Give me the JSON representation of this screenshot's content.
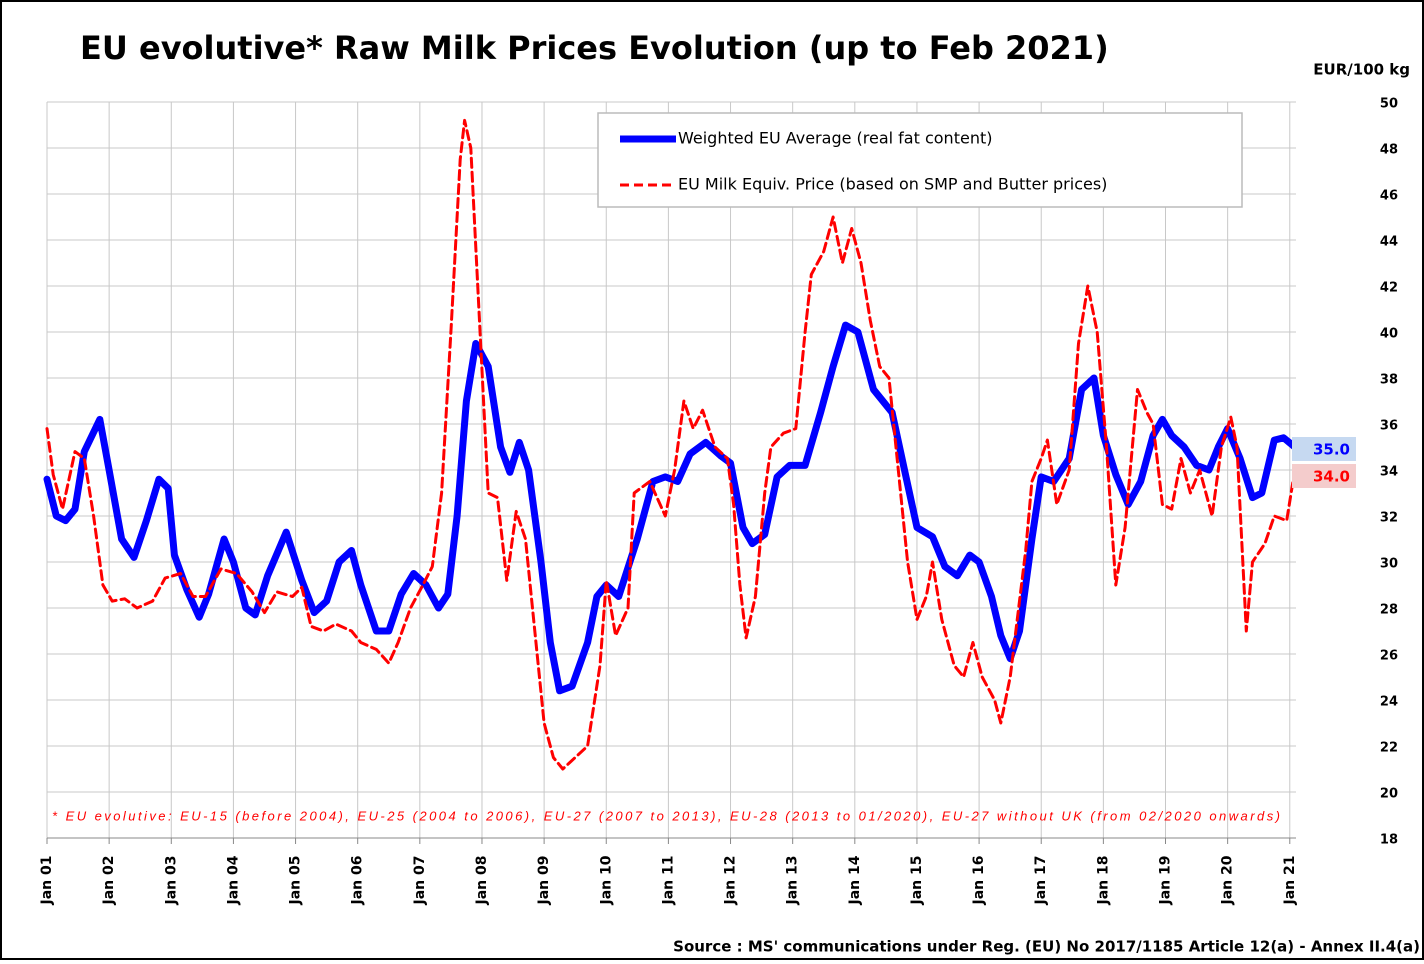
{
  "chart_data": {
    "type": "line",
    "title": "EU evolutive* Raw Milk Prices Evolution (up to Feb 2021)",
    "y_axis_label": "EUR/100 kg",
    "annotation": "* EU evolutive: EU-15 (before 2004), EU-25 (2004 to 2006), EU-27 (2007 to 2013), EU-28 (2013 to 01/2020), EU-27 without UK (from 02/2020 onwards)",
    "source": "Source : MS' communications under Reg. (EU) No 2017/1185 Article 12(a) - Annex II.4(a)",
    "xlim": [
      2001,
      2021.1
    ],
    "xticks": [
      {
        "value": 2001,
        "label": "Jan 01"
      },
      {
        "value": 2002,
        "label": "Jan 02"
      },
      {
        "value": 2003,
        "label": "Jan 03"
      },
      {
        "value": 2004,
        "label": "Jan 04"
      },
      {
        "value": 2005,
        "label": "Jan 05"
      },
      {
        "value": 2006,
        "label": "Jan 06"
      },
      {
        "value": 2007,
        "label": "Jan 07"
      },
      {
        "value": 2008,
        "label": "Jan 08"
      },
      {
        "value": 2009,
        "label": "Jan 09"
      },
      {
        "value": 2010,
        "label": "Jan 10"
      },
      {
        "value": 2011,
        "label": "Jan 11"
      },
      {
        "value": 2012,
        "label": "Jan 12"
      },
      {
        "value": 2013,
        "label": "Jan 13"
      },
      {
        "value": 2014,
        "label": "Jan 14"
      },
      {
        "value": 2015,
        "label": "Jan 15"
      },
      {
        "value": 2016,
        "label": "Jan 16"
      },
      {
        "value": 2017,
        "label": "Jan 17"
      },
      {
        "value": 2018,
        "label": "Jan 18"
      },
      {
        "value": 2019,
        "label": "Jan 19"
      },
      {
        "value": 2020,
        "label": "Jan 20"
      },
      {
        "value": 2021,
        "label": "Jan 21"
      }
    ],
    "ylim": [
      18,
      50
    ],
    "yticks": [
      18,
      20,
      22,
      24,
      26,
      28,
      30,
      32,
      34,
      36,
      38,
      40,
      42,
      44,
      46,
      48,
      50
    ],
    "grid": true,
    "legend": "top-right",
    "series": [
      {
        "name": "Weighted EU Average (real fat content)",
        "color": "#0000ff",
        "dash": false,
        "last_label": "35.0",
        "x": [
          2001.0,
          2001.15,
          2001.3,
          2001.45,
          2001.6,
          2001.85,
          2002.0,
          2002.2,
          2002.4,
          2002.6,
          2002.8,
          2002.95,
          2003.05,
          2003.25,
          2003.45,
          2003.6,
          2003.85,
          2004.0,
          2004.2,
          2004.35,
          2004.55,
          2004.85,
          2005.1,
          2005.3,
          2005.5,
          2005.7,
          2005.9,
          2006.05,
          2006.3,
          2006.5,
          2006.7,
          2006.9,
          2007.1,
          2007.3,
          2007.45,
          2007.6,
          2007.75,
          2007.9,
          2008.1,
          2008.3,
          2008.45,
          2008.6,
          2008.75,
          2008.95,
          2009.1,
          2009.25,
          2009.45,
          2009.7,
          2009.85,
          2010.0,
          2010.2,
          2010.5,
          2010.75,
          2010.95,
          2011.15,
          2011.35,
          2011.6,
          2011.85,
          2012.0,
          2012.2,
          2012.35,
          2012.55,
          2012.75,
          2012.95,
          2013.2,
          2013.45,
          2013.65,
          2013.85,
          2014.05,
          2014.3,
          2014.45,
          2014.6,
          2014.8,
          2015.0,
          2015.25,
          2015.45,
          2015.65,
          2015.85,
          2016.0,
          2016.2,
          2016.35,
          2016.5,
          2016.65,
          2016.85,
          2017.0,
          2017.2,
          2017.45,
          2017.65,
          2017.85,
          2018.0,
          2018.2,
          2018.4,
          2018.6,
          2018.8,
          2018.95,
          2019.1,
          2019.3,
          2019.5,
          2019.7,
          2019.85,
          2020.0,
          2020.2,
          2020.4,
          2020.55,
          2020.75,
          2020.9,
          2021.08
        ],
        "values": [
          33.6,
          32.0,
          31.8,
          32.3,
          34.8,
          36.2,
          34.0,
          31.0,
          30.2,
          31.8,
          33.6,
          33.2,
          30.3,
          28.8,
          27.6,
          28.6,
          31.0,
          30.0,
          28.0,
          27.7,
          29.4,
          31.3,
          29.2,
          27.8,
          28.3,
          30.0,
          30.5,
          29.0,
          27.0,
          27.0,
          28.6,
          29.5,
          29.0,
          28.0,
          28.6,
          32.0,
          37.0,
          39.5,
          38.5,
          35.0,
          33.9,
          35.2,
          34.0,
          30.0,
          26.5,
          24.4,
          24.6,
          26.5,
          28.5,
          29.0,
          28.5,
          31.0,
          33.5,
          33.7,
          33.5,
          34.7,
          35.2,
          34.6,
          34.3,
          31.5,
          30.8,
          31.2,
          33.7,
          34.2,
          34.2,
          36.5,
          38.5,
          40.3,
          40.0,
          37.5,
          37.0,
          36.5,
          34.0,
          31.5,
          31.1,
          29.8,
          29.4,
          30.3,
          30.0,
          28.5,
          26.8,
          25.8,
          27.0,
          31.0,
          33.7,
          33.5,
          34.5,
          37.5,
          38.0,
          35.5,
          33.8,
          32.5,
          33.5,
          35.5,
          36.2,
          35.5,
          35.0,
          34.2,
          34.0,
          35.0,
          35.8,
          34.5,
          32.8,
          33.0,
          35.3,
          35.4,
          35
        ]
      },
      {
        "name": "EU Milk Equiv. Price (based on SMP and Butter prices)",
        "color": "#ff0000",
        "dash": true,
        "last_label": "34.0",
        "x": [
          2001.0,
          2001.1,
          2001.25,
          2001.45,
          2001.6,
          2001.75,
          2001.9,
          2002.05,
          2002.25,
          2002.45,
          2002.7,
          2002.9,
          2003.15,
          2003.35,
          2003.55,
          2003.8,
          2004.05,
          2004.3,
          2004.5,
          2004.7,
          2004.95,
          2005.1,
          2005.25,
          2005.45,
          2005.65,
          2005.9,
          2006.05,
          2006.3,
          2006.5,
          2006.65,
          2006.85,
          2007.05,
          2007.2,
          2007.35,
          2007.5,
          2007.65,
          2007.72,
          2007.82,
          2007.95,
          2008.1,
          2008.25,
          2008.4,
          2008.55,
          2008.7,
          2008.85,
          2009.0,
          2009.15,
          2009.3,
          2009.5,
          2009.7,
          2009.9,
          2010.0,
          2010.15,
          2010.35,
          2010.45,
          2010.7,
          2010.95,
          2011.1,
          2011.25,
          2011.4,
          2011.55,
          2011.75,
          2011.95,
          2012.05,
          2012.15,
          2012.25,
          2012.4,
          2012.55,
          2012.65,
          2012.85,
          2013.05,
          2013.2,
          2013.3,
          2013.5,
          2013.65,
          2013.8,
          2013.95,
          2014.1,
          2014.25,
          2014.4,
          2014.55,
          2014.7,
          2014.85,
          2015.0,
          2015.15,
          2015.25,
          2015.4,
          2015.6,
          2015.75,
          2015.9,
          2016.05,
          2016.25,
          2016.35,
          2016.5,
          2016.75,
          2016.85,
          2017.0,
          2017.1,
          2017.25,
          2017.45,
          2017.6,
          2017.75,
          2017.9,
          2018.05,
          2018.2,
          2018.35,
          2018.55,
          2018.7,
          2018.8,
          2018.95,
          2019.1,
          2019.25,
          2019.4,
          2019.55,
          2019.75,
          2019.9,
          2020.05,
          2020.15,
          2020.3,
          2020.4,
          2020.6,
          2020.75,
          2020.95,
          2021.08
        ],
        "values": [
          35.8,
          33.8,
          32.3,
          34.8,
          34.5,
          32.0,
          29.0,
          28.3,
          28.4,
          28.0,
          28.3,
          29.3,
          29.5,
          28.5,
          28.5,
          29.7,
          29.5,
          28.7,
          27.8,
          28.7,
          28.5,
          28.9,
          27.2,
          27.0,
          27.3,
          27.0,
          26.5,
          26.2,
          25.6,
          26.5,
          28.0,
          29.0,
          29.8,
          33.0,
          40.0,
          47.5,
          49.2,
          48.0,
          41.0,
          33.0,
          32.8,
          29.2,
          32.2,
          31.0,
          27.0,
          23.0,
          21.5,
          21.0,
          21.5,
          22.0,
          25.5,
          29.2,
          26.8,
          28.0,
          33.0,
          33.5,
          32.0,
          34.0,
          37.0,
          35.8,
          36.6,
          35.0,
          34.5,
          32.5,
          29.0,
          26.7,
          28.5,
          33.0,
          35.0,
          35.6,
          35.8,
          40.0,
          42.5,
          43.5,
          45.0,
          43.0,
          44.5,
          43.0,
          40.5,
          38.5,
          38.0,
          34.0,
          30.0,
          27.5,
          28.5,
          30.0,
          27.5,
          25.5,
          25.0,
          26.5,
          25.0,
          24.0,
          23.0,
          25.0,
          30.5,
          33.5,
          34.5,
          35.3,
          32.5,
          34.0,
          39.5,
          42.0,
          40.0,
          35.0,
          29.0,
          31.5,
          37.5,
          36.5,
          36.0,
          32.5,
          32.3,
          34.5,
          33.0,
          34.0,
          32.0,
          35.0,
          36.3,
          35.0,
          27.0,
          30.0,
          30.8,
          32.0,
          31.8,
          34
        ]
      }
    ]
  }
}
